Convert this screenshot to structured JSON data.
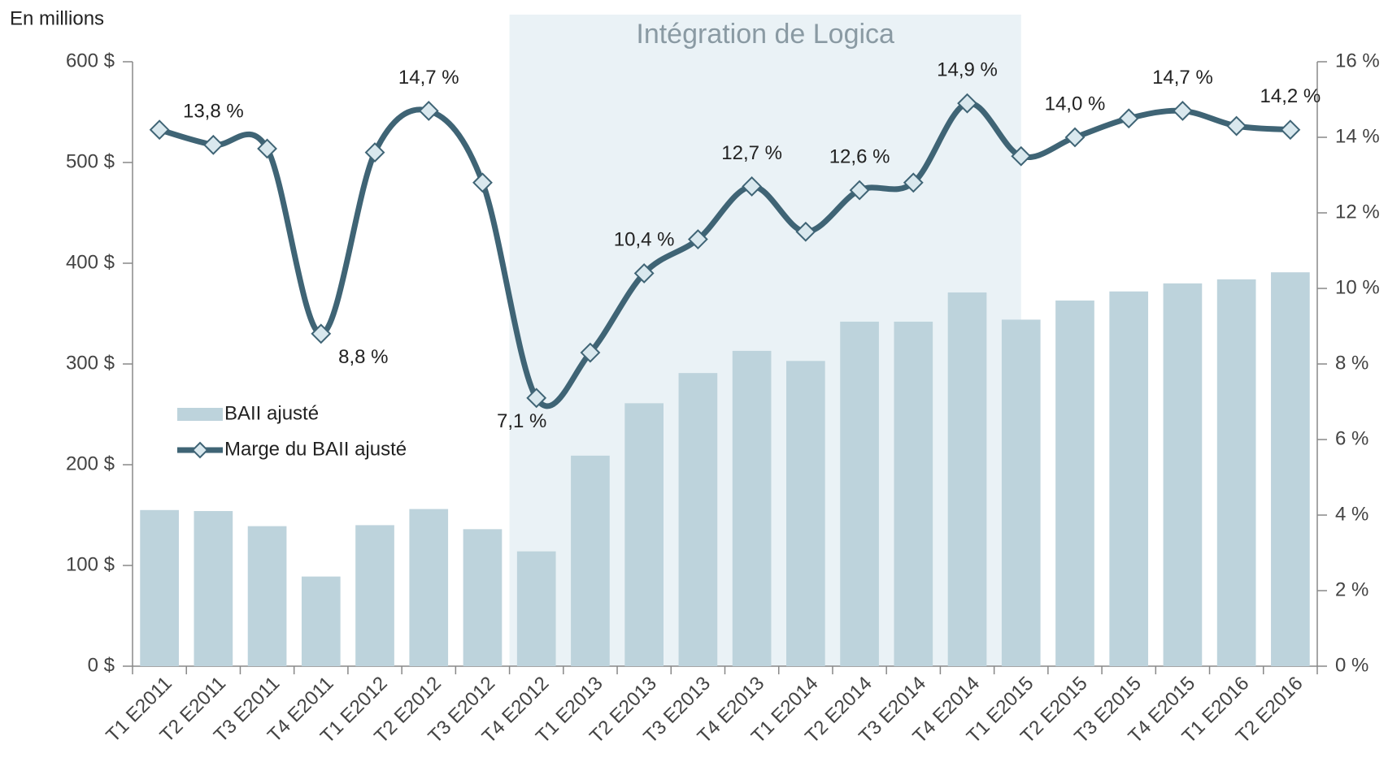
{
  "chart_data": {
    "type": "bar_line",
    "y_axis_label": "En millions",
    "annotation": {
      "text": "Intégration de Logica",
      "from": "T4 E2012",
      "to": "T4 E2014",
      "color": "#eaf2f6"
    },
    "categories": [
      "T1 E2011",
      "T2 E2011",
      "T3 E2011",
      "T4 E2011",
      "T1 E2012",
      "T2 E2012",
      "T3 E2012",
      "T4 E2012",
      "T1 E2013",
      "T2 E2013",
      "T3 E2013",
      "T4 E2013",
      "T1 E2014",
      "T2 E2014",
      "T3 E2014",
      "T4 E2014",
      "T1 E2015",
      "T2 E2015",
      "T3 E2015",
      "T4 E2015",
      "T1 E2016",
      "T2 E2016"
    ],
    "series": [
      {
        "name": "BAII ajusté",
        "type": "bar",
        "color": "#bdd3dc",
        "values": [
          155,
          154,
          139,
          89,
          140,
          156,
          136,
          114,
          209,
          261,
          291,
          313,
          303,
          342,
          342,
          371,
          344,
          363,
          372,
          380,
          384,
          391
        ]
      },
      {
        "name": "Marge du BAII ajusté",
        "type": "line",
        "axis": "y2",
        "color": "#3f6475",
        "marker_color": "#d9e8ee",
        "values": [
          14.2,
          13.8,
          13.7,
          8.8,
          13.6,
          14.7,
          12.8,
          7.1,
          8.3,
          10.4,
          11.3,
          12.7,
          11.5,
          12.6,
          12.8,
          14.9,
          13.5,
          14.0,
          14.5,
          14.7,
          14.3,
          14.2
        ],
        "value_labels": [
          null,
          "13,8 %",
          null,
          "8,8 %",
          null,
          "14,7 %",
          null,
          "7,1 %",
          null,
          "10,4 %",
          null,
          "12,7 %",
          null,
          "12,6 %",
          null,
          "14,9 %",
          null,
          "14,0 %",
          null,
          "14,7 %",
          null,
          "14,2 %"
        ]
      }
    ],
    "ylim": [
      0,
      600
    ],
    "yticks": [
      {
        "value": 0,
        "label": "0 $"
      },
      {
        "value": 100,
        "label": "100 $"
      },
      {
        "value": 200,
        "label": "200 $"
      },
      {
        "value": 300,
        "label": "300 $"
      },
      {
        "value": 400,
        "label": "400 $"
      },
      {
        "value": 500,
        "label": "500 $"
      },
      {
        "value": 600,
        "label": "600 $"
      }
    ],
    "y2lim": [
      0,
      16
    ],
    "y2ticks": [
      {
        "value": 0,
        "label": "0 %"
      },
      {
        "value": 2,
        "label": "2 %"
      },
      {
        "value": 4,
        "label": "4 %"
      },
      {
        "value": 6,
        "label": "6 %"
      },
      {
        "value": 8,
        "label": "8 %"
      },
      {
        "value": 10,
        "label": "10 %"
      },
      {
        "value": 12,
        "label": "12 %"
      },
      {
        "value": 14,
        "label": "14 %"
      },
      {
        "value": 16,
        "label": "16 %"
      }
    ],
    "grid": false
  }
}
